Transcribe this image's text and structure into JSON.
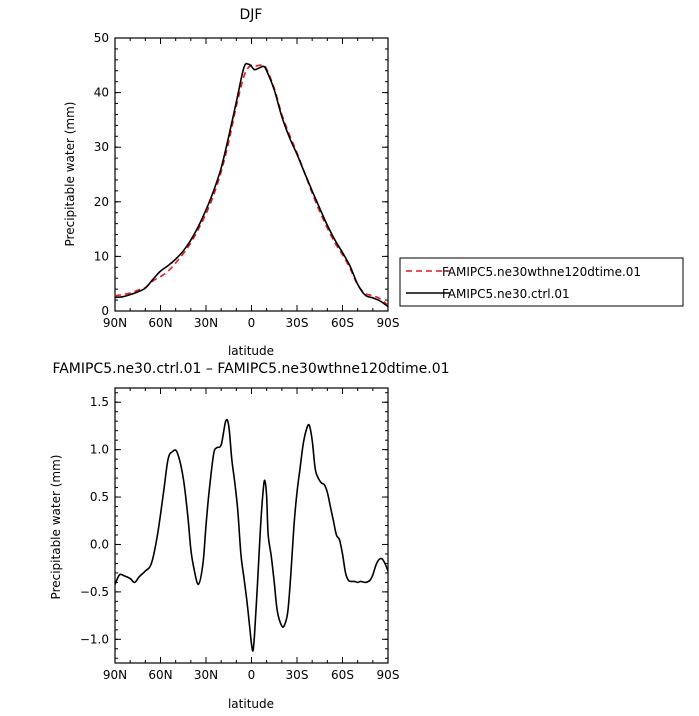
{
  "chart_data": [
    {
      "type": "line",
      "title": "DJF",
      "xlabel": "latitude",
      "ylabel": "Precipitable water (mm)",
      "x_unit": "degrees latitude (positive = N, negative = S)",
      "xlim": [
        90,
        -90
      ],
      "ylim": [
        0,
        50
      ],
      "xticks": [
        90,
        60,
        30,
        0,
        -30,
        -60,
        -90
      ],
      "xtick_labels": [
        "90N",
        "60N",
        "30N",
        "0",
        "30S",
        "60S",
        "90S"
      ],
      "yticks": [
        0,
        10,
        20,
        30,
        40,
        50
      ],
      "ytick_labels": [
        "0",
        "10",
        "20",
        "30",
        "40",
        "50"
      ],
      "legend_position": "right, outside plot",
      "series": [
        {
          "name": "FAMIPC5.ne30wthne120dtime.01",
          "color": "#e41a1c",
          "dash": "dashed",
          "x": [
            90,
            85,
            80,
            75,
            70,
            65,
            60,
            55,
            50,
            45,
            40,
            35,
            30,
            25,
            20,
            15,
            10,
            5,
            2,
            0,
            -2,
            -5,
            -8,
            -10,
            -15,
            -20,
            -25,
            -30,
            -35,
            -40,
            -45,
            -50,
            -55,
            -60,
            -65,
            -70,
            -75,
            -80,
            -85,
            -90
          ],
          "y": [
            2.8,
            3.0,
            3.3,
            3.8,
            4.3,
            5.5,
            6.3,
            7.3,
            8.8,
            10.5,
            12.5,
            15.0,
            17.8,
            21.2,
            25.5,
            31.0,
            37.5,
            43.0,
            44.6,
            45.0,
            44.8,
            45.0,
            45.0,
            44.3,
            40.8,
            36.0,
            32.3,
            29.0,
            25.3,
            21.6,
            18.2,
            15.2,
            12.5,
            10.3,
            7.8,
            4.8,
            3.2,
            2.8,
            2.2,
            1.0
          ]
        },
        {
          "name": "FAMIPC5.ne30.ctrl.01",
          "color": "#000000",
          "dash": "solid",
          "x": [
            90,
            85,
            80,
            75,
            70,
            65,
            60,
            55,
            50,
            45,
            40,
            35,
            30,
            25,
            20,
            15,
            10,
            5,
            2,
            0,
            -2,
            -5,
            -8,
            -10,
            -15,
            -20,
            -25,
            -30,
            -35,
            -40,
            -45,
            -50,
            -55,
            -60,
            -65,
            -70,
            -75,
            -80,
            -85,
            -90
          ],
          "y": [
            2.5,
            2.6,
            3.0,
            3.5,
            4.2,
            5.8,
            7.3,
            8.3,
            9.5,
            11.0,
            13.0,
            15.5,
            18.5,
            22.0,
            26.2,
            32.0,
            38.3,
            44.6,
            45.2,
            44.8,
            44.2,
            44.5,
            44.8,
            44.0,
            40.5,
            35.6,
            31.8,
            28.7,
            25.3,
            22.0,
            18.8,
            15.7,
            13.0,
            10.7,
            8.2,
            4.9,
            2.9,
            2.4,
            1.8,
            0.8
          ]
        }
      ]
    },
    {
      "type": "line",
      "title": "FAMIPC5.ne30.ctrl.01 – FAMIPC5.ne30wthne120dtime.01",
      "xlabel": "latitude",
      "ylabel": "Precipitable water (mm)",
      "x_unit": "degrees latitude (positive = N, negative = S)",
      "xlim": [
        90,
        -90
      ],
      "ylim": [
        -1.25,
        1.65
      ],
      "xticks": [
        90,
        60,
        30,
        0,
        -30,
        -60,
        -90
      ],
      "xtick_labels": [
        "90N",
        "60N",
        "30N",
        "0",
        "30S",
        "60S",
        "90S"
      ],
      "yticks": [
        1.5,
        1.0,
        0.5,
        0.0,
        -0.5,
        -1.0
      ],
      "ytick_labels": [
        "1.5",
        "1.0",
        "0.5",
        "0.0",
        "−0.5",
        "−1.0"
      ],
      "series": [
        {
          "name": "",
          "color": "#000000",
          "dash": "solid",
          "x": [
            90,
            87,
            84,
            80,
            77,
            74,
            70,
            66,
            62,
            58,
            55,
            52,
            49,
            45,
            42,
            40,
            38,
            35,
            32,
            30,
            28,
            25,
            23,
            20,
            17,
            15,
            13,
            11,
            9,
            7,
            5,
            3,
            1,
            0,
            -1,
            -2,
            -4,
            -6,
            -8,
            -9,
            -10,
            -11,
            -13,
            -15,
            -17,
            -20,
            -22,
            -24,
            -26,
            -28,
            -30,
            -32,
            -34,
            -36,
            -38,
            -40,
            -42,
            -44,
            -46,
            -48,
            -50,
            -52,
            -54,
            -56,
            -58,
            -60,
            -62,
            -64,
            -66,
            -68,
            -70,
            -72,
            -75,
            -78,
            -80,
            -82,
            -84,
            -86,
            -88,
            -90
          ],
          "y": [
            -0.42,
            -0.32,
            -0.33,
            -0.36,
            -0.4,
            -0.34,
            -0.28,
            -0.2,
            0.1,
            0.55,
            0.9,
            0.98,
            0.97,
            0.7,
            0.3,
            -0.05,
            -0.25,
            -0.42,
            -0.2,
            0.2,
            0.55,
            0.95,
            1.02,
            1.05,
            1.3,
            1.25,
            0.9,
            0.65,
            0.35,
            -0.1,
            -0.35,
            -0.6,
            -0.9,
            -1.05,
            -1.12,
            -0.95,
            -0.4,
            0.2,
            0.62,
            0.66,
            0.5,
            0.1,
            -0.12,
            -0.4,
            -0.7,
            -0.86,
            -0.84,
            -0.7,
            -0.3,
            0.2,
            0.55,
            0.8,
            1.05,
            1.2,
            1.26,
            1.1,
            0.8,
            0.7,
            0.65,
            0.63,
            0.55,
            0.4,
            0.25,
            0.1,
            0.05,
            -0.1,
            -0.3,
            -0.38,
            -0.39,
            -0.39,
            -0.4,
            -0.39,
            -0.4,
            -0.38,
            -0.32,
            -0.22,
            -0.16,
            -0.15,
            -0.2,
            -0.28
          ]
        }
      ]
    }
  ]
}
